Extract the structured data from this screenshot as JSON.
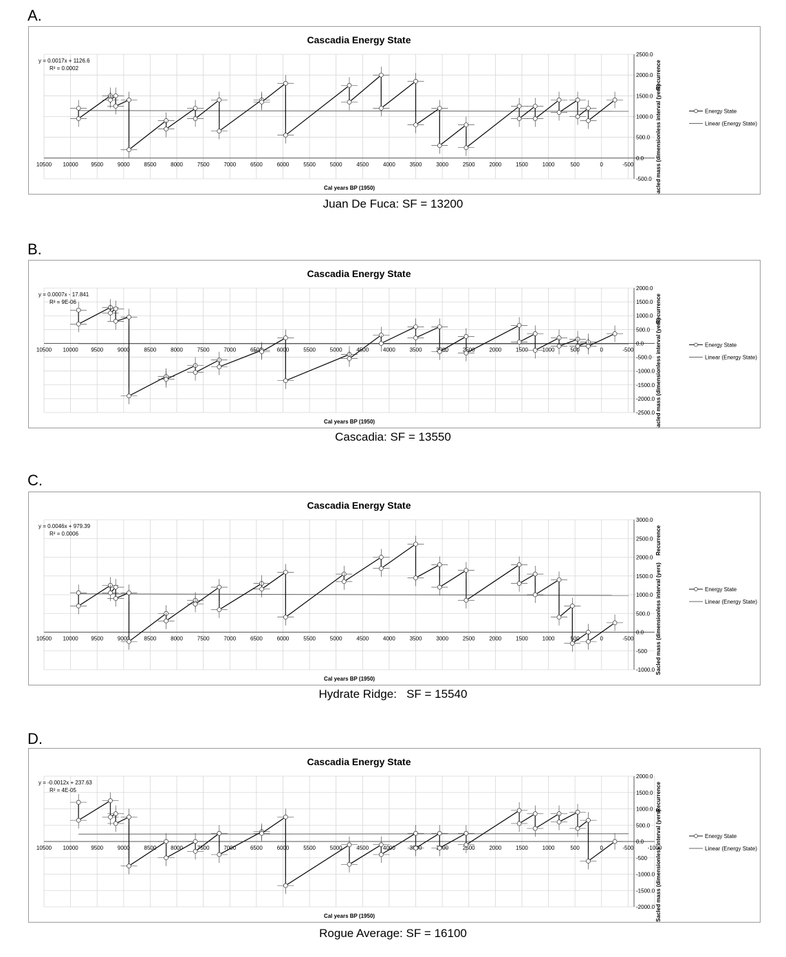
{
  "panels": [
    {
      "letter": "A.",
      "caption": "Juan De Fuca: SF = 13200"
    },
    {
      "letter": "B.",
      "caption": "Cascadia: SF = 13550"
    },
    {
      "letter": "C.",
      "caption": "Hydrate Ridge:   SF = 15540"
    },
    {
      "letter": "D.",
      "caption": "Rogue Average: SF = 16100"
    }
  ],
  "chart_data": [
    {
      "type": "line",
      "title": "Cascadia Energy State",
      "xlabel": "Cal years BP (1950)",
      "ylabel_top": "Recurrence",
      "ylabel_bottom": "Sacled mass (dimensionless interval (yers)",
      "equation": "y = 0.0017x + 1126.6",
      "r2": "R² = 0.0002",
      "xlim": [
        10500,
        -1000
      ],
      "xticks": [
        10500,
        10000,
        9500,
        9000,
        8500,
        8000,
        7500,
        7000,
        6500,
        6000,
        5500,
        5000,
        4500,
        4000,
        3500,
        3000,
        2500,
        2000,
        1500,
        1000,
        500,
        0,
        -500
      ],
      "ylim": [
        -500,
        2500
      ],
      "yticks": [
        "-500.0",
        "0.0",
        "500.0",
        "1000.0",
        "1500.0",
        "2000.0",
        "2500.0"
      ],
      "legend": [
        "Energy State",
        "Linear (Energy State)"
      ],
      "legend_position": "right",
      "trend": {
        "slope": 0.0017,
        "intercept": 1126.6
      },
      "series": [
        {
          "name": "Energy State",
          "x": [
            9850,
            9850,
            9250,
            9250,
            9150,
            9150,
            8900,
            8900,
            8200,
            8200,
            7650,
            7650,
            7200,
            7200,
            6400,
            6400,
            5950,
            5950,
            4750,
            4750,
            4150,
            4150,
            3500,
            3500,
            3050,
            3050,
            2550,
            2550,
            1550,
            1550,
            1250,
            1250,
            800,
            800,
            450,
            450,
            250,
            250,
            -250
          ],
          "y": [
            1200,
            950,
            1500,
            1400,
            1500,
            1250,
            1400,
            200,
            900,
            700,
            1200,
            950,
            1400,
            650,
            1400,
            1350,
            1800,
            550,
            1750,
            1350,
            2000,
            1200,
            1850,
            800,
            1200,
            300,
            800,
            250,
            1250,
            950,
            1250,
            950,
            1400,
            1100,
            1400,
            1000,
            1200,
            900,
            1400
          ]
        }
      ]
    },
    {
      "type": "line",
      "title": "Cascadia Energy State",
      "xlabel": "Cal years BP (1950)",
      "ylabel_top": "Recurrence",
      "ylabel_bottom": "Sacled mass (dimensionless interval (yers)",
      "equation": "y = 0.0007x - 17.841",
      "r2": "R² = 9E-06",
      "xlim": [
        10500,
        -1000
      ],
      "xticks": [
        10500,
        10000,
        9500,
        9000,
        8500,
        8000,
        7500,
        7000,
        6500,
        6000,
        5500,
        5000,
        4500,
        4000,
        3500,
        3000,
        2500,
        2000,
        1500,
        1000,
        500,
        0,
        -500
      ],
      "ylim": [
        -2500,
        2000
      ],
      "yticks": [
        "-2500.0",
        "-2000.0",
        "-1500.0",
        "-1000.0",
        "-500.0",
        "0.0",
        "500.0",
        "1000.0",
        "1500.0",
        "2000.0"
      ],
      "legend": [
        "Energy State",
        "Linear (Energy State)"
      ],
      "legend_position": "right",
      "trend": {
        "slope": 0.0007,
        "intercept": -17.841
      },
      "series": [
        {
          "name": "Energy State",
          "x": [
            9850,
            9850,
            9250,
            9250,
            9150,
            9150,
            8900,
            8900,
            8200,
            8200,
            7650,
            7650,
            7200,
            7200,
            6400,
            6400,
            5950,
            5950,
            4750,
            4750,
            4150,
            4150,
            3500,
            3500,
            3050,
            3050,
            2550,
            2550,
            1550,
            1550,
            1250,
            1250,
            800,
            800,
            450,
            450,
            250,
            250,
            -250
          ],
          "y": [
            1200,
            700,
            1300,
            1100,
            1250,
            800,
            950,
            -1900,
            -1200,
            -1300,
            -800,
            -1050,
            -600,
            -850,
            -250,
            -300,
            200,
            -1350,
            -400,
            -550,
            300,
            0,
            600,
            200,
            600,
            -300,
            250,
            -350,
            650,
            50,
            350,
            -250,
            200,
            -100,
            150,
            -100,
            50,
            -100,
            350
          ]
        }
      ]
    },
    {
      "type": "line",
      "title": "Cascadia Energy State",
      "xlabel": "Cal years BP (1950)",
      "ylabel_top": "Recurrence",
      "ylabel_bottom": "Sacled mass (dimensionless interval (yers)",
      "equation": "y = 0.0046x + 979.39",
      "r2": "R² = 0.0006",
      "xlim": [
        10500,
        -1000
      ],
      "xticks": [
        10500,
        10000,
        9500,
        9000,
        8500,
        8000,
        7500,
        7000,
        6500,
        6000,
        5500,
        5000,
        4500,
        4000,
        3500,
        3000,
        2500,
        2000,
        1500,
        1000,
        500,
        0,
        -500
      ],
      "ylim": [
        -1000,
        3000
      ],
      "yticks": [
        "-1000.0",
        "-500",
        "0.0",
        "500.0",
        "1000.0",
        "1500.0",
        "2000.0",
        "2500.0",
        "3000.0"
      ],
      "legend": [
        "Energy State",
        "Linear (Energy State)"
      ],
      "legend_position": "right",
      "trend": {
        "slope": 0.0046,
        "intercept": 979.39
      },
      "series": [
        {
          "name": "Energy State",
          "x": [
            9850,
            9850,
            9250,
            9250,
            9150,
            9150,
            8900,
            8900,
            8200,
            8200,
            7650,
            7650,
            7200,
            7200,
            6400,
            6400,
            5950,
            5950,
            4850,
            4850,
            4150,
            4150,
            3500,
            3500,
            3050,
            3050,
            2550,
            2550,
            1550,
            1550,
            1250,
            1250,
            800,
            800,
            550,
            550,
            250,
            250,
            -250
          ],
          "y": [
            1050,
            700,
            1250,
            1050,
            1200,
            900,
            1050,
            -250,
            500,
            300,
            850,
            750,
            1200,
            600,
            1300,
            1150,
            1600,
            400,
            1550,
            1350,
            2000,
            1700,
            2350,
            1450,
            1800,
            1200,
            1650,
            850,
            1800,
            1300,
            1550,
            1000,
            1400,
            400,
            700,
            -300,
            0,
            -250,
            250
          ]
        }
      ]
    },
    {
      "type": "line",
      "title": "Cascadia Energy State",
      "xlabel": "Cal years BP (1950)",
      "ylabel_top": "Recurrence",
      "ylabel_bottom": "Sacled mass (dimensionless interval (yers)",
      "equation": "y = -0.0012x + 237.63",
      "r2": "R² = 4E-05",
      "xlim": [
        10500,
        -1000
      ],
      "xticks": [
        10500,
        10000,
        9500,
        9000,
        8500,
        8000,
        7500,
        7000,
        6500,
        6000,
        5500,
        5000,
        4500,
        4000,
        3500,
        3000,
        2500,
        2000,
        1500,
        1000,
        500,
        0,
        -500,
        -1000
      ],
      "ylim": [
        -2000,
        2000
      ],
      "yticks": [
        "-2000.0",
        "-1500.0",
        "-1000.0",
        "-500",
        "0.0",
        "500.0",
        "1000.0",
        "1500.0",
        "2000.0"
      ],
      "legend": [
        "Energy State",
        "Linear (Energy State)"
      ],
      "legend_position": "right",
      "trend": {
        "slope": -0.0012,
        "intercept": 237.63
      },
      "series": [
        {
          "name": "Energy State",
          "x": [
            9850,
            9850,
            9250,
            9250,
            9150,
            9150,
            8900,
            8900,
            8200,
            8200,
            7650,
            7650,
            7200,
            7200,
            6400,
            6400,
            5950,
            5950,
            4750,
            4750,
            4150,
            4150,
            3500,
            3500,
            3050,
            3050,
            2550,
            2550,
            1550,
            1550,
            1250,
            1250,
            800,
            800,
            450,
            450,
            250,
            250,
            -250
          ],
          "y": [
            1200,
            650,
            1250,
            750,
            850,
            550,
            750,
            -750,
            0,
            -500,
            0,
            -300,
            250,
            -400,
            300,
            250,
            750,
            -1350,
            -100,
            -700,
            -100,
            -400,
            250,
            -200,
            250,
            -200,
            250,
            -100,
            950,
            550,
            850,
            400,
            850,
            600,
            900,
            400,
            650,
            -600,
            0
          ]
        }
      ]
    }
  ]
}
